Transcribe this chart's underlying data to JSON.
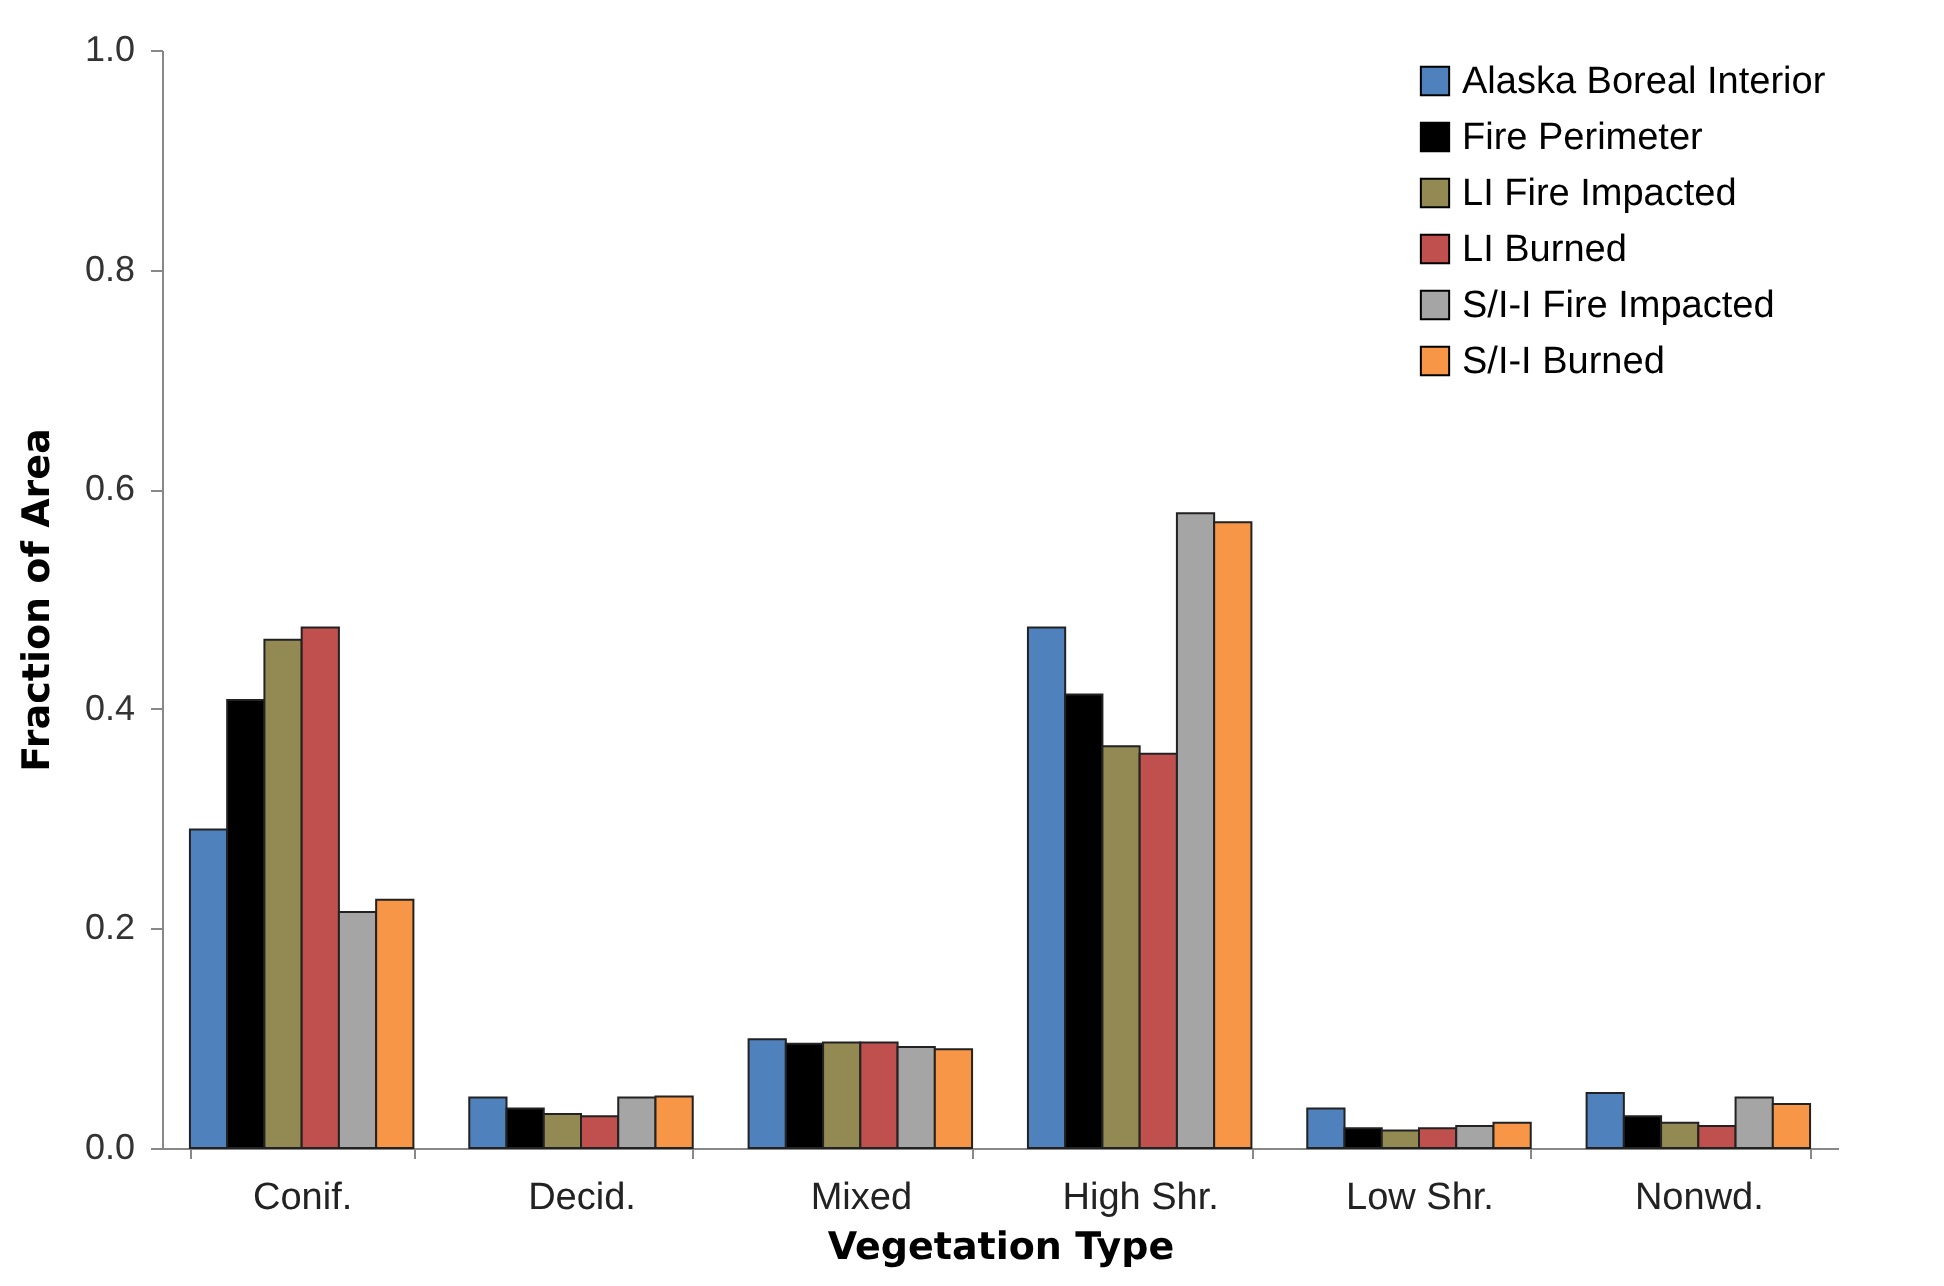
{
  "chart_data": {
    "type": "bar",
    "xlabel": "Vegetation Type",
    "ylabel": "Fraction of Area",
    "categories": [
      "Conif.",
      "Decid.",
      "Mixed",
      "High Shr.",
      "Low Shr.",
      "Nonwd."
    ],
    "series": [
      {
        "name": "Alaska Boreal Interior",
        "color": "#4f81bd",
        "values": [
          0.29,
          0.046,
          0.099,
          0.474,
          0.036,
          0.05
        ]
      },
      {
        "name": "Fire Perimeter",
        "color": "#000000",
        "values": [
          0.408,
          0.036,
          0.095,
          0.413,
          0.018,
          0.029
        ]
      },
      {
        "name": "LI Fire Impacted",
        "color": "#938953",
        "values": [
          0.463,
          0.031,
          0.096,
          0.366,
          0.016,
          0.023
        ]
      },
      {
        "name": "LI Burned",
        "color": "#c0504d",
        "values": [
          0.474,
          0.029,
          0.096,
          0.359,
          0.018,
          0.02
        ]
      },
      {
        "name": "S/I-I Fire Impacted",
        "color": "#a5a5a5",
        "values": [
          0.215,
          0.046,
          0.092,
          0.578,
          0.02,
          0.046
        ]
      },
      {
        "name": "S/I-I Burned",
        "color": "#f79646",
        "values": [
          0.226,
          0.047,
          0.09,
          0.57,
          0.023,
          0.04
        ]
      }
    ],
    "ylim": [
      0,
      1
    ],
    "yticks": [
      {
        "value": 0,
        "label": "0.0"
      },
      {
        "value": 0.2,
        "label": "0.2"
      },
      {
        "value": 0.4,
        "label": "0.4"
      },
      {
        "value": 0.6,
        "label": "0.6"
      },
      {
        "value": 0.8,
        "label": "0.8"
      },
      {
        "value": 1,
        "label": "1.0"
      }
    ],
    "grid": false,
    "legend": "top right"
  }
}
